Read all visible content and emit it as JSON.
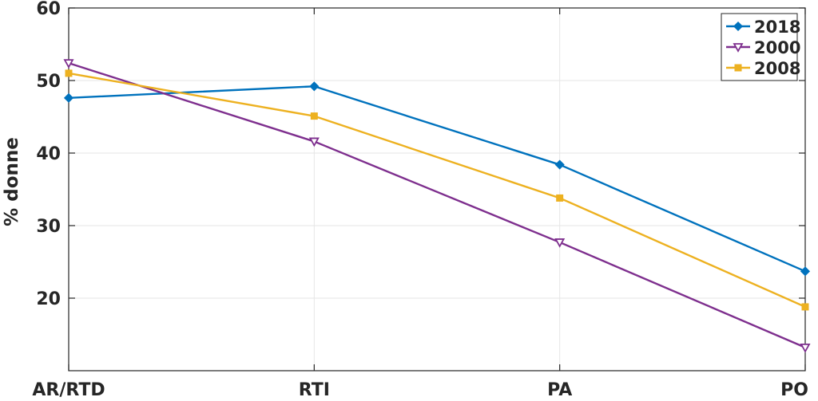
{
  "chart_data": {
    "type": "line",
    "categories": [
      "AR/RTD",
      "RTI",
      "PA",
      "PO"
    ],
    "ylabel": "% donne",
    "ylim": [
      10,
      60
    ],
    "yticks": [
      20,
      30,
      40,
      50,
      60
    ],
    "grid": true,
    "legend_position": "top-right",
    "series": [
      {
        "name": "2018",
        "color": "#0072BD",
        "marker": "diamond",
        "values": [
          47.6,
          49.2,
          38.4,
          23.7
        ]
      },
      {
        "name": "2000",
        "color": "#7E2F8E",
        "marker": "triangle-down",
        "values": [
          52.4,
          41.6,
          27.7,
          13.2
        ]
      },
      {
        "name": "2008",
        "color": "#EDB120",
        "marker": "square",
        "values": [
          51.0,
          45.1,
          33.8,
          18.8
        ]
      }
    ]
  }
}
